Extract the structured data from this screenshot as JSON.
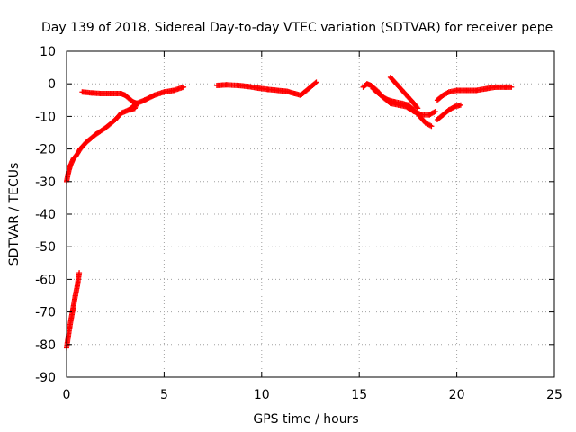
{
  "chart_data": {
    "type": "scatter",
    "title": "Day 139 of 2018, Sidereal Day-to-day VTEC variation (SDTVAR) for receiver pepe",
    "xlabel": "GPS time / hours",
    "ylabel": "SDTVAR / TECUs",
    "xlim": [
      0,
      25
    ],
    "ylim": [
      -90,
      10
    ],
    "xticks": [
      "0",
      "5",
      "10",
      "15",
      "20",
      "25"
    ],
    "yticks": [
      "10",
      "0",
      "-10",
      "-20",
      "-30",
      "-40",
      "-50",
      "-60",
      "-70",
      "-80",
      "-90"
    ],
    "grid": true,
    "marker": "plus",
    "color": "#ff0000",
    "series": [
      {
        "segments": [
          [
            [
              0.0,
              -81
            ],
            [
              0.15,
              -75
            ],
            [
              0.3,
              -70
            ],
            [
              0.45,
              -65
            ],
            [
              0.55,
              -62
            ],
            [
              0.65,
              -58
            ]
          ],
          [
            [
              0.0,
              -30
            ],
            [
              0.1,
              -27
            ],
            [
              0.2,
              -25
            ],
            [
              0.35,
              -23
            ],
            [
              0.5,
              -22
            ],
            [
              0.7,
              -20
            ],
            [
              1.0,
              -18
            ],
            [
              1.5,
              -15.5
            ],
            [
              2.0,
              -13.5
            ],
            [
              2.5,
              -11
            ],
            [
              2.8,
              -9
            ],
            [
              3.2,
              -8
            ],
            [
              3.6,
              -6
            ],
            [
              4.0,
              -5
            ],
            [
              4.5,
              -3.5
            ],
            [
              5.0,
              -2.5
            ],
            [
              5.5,
              -2
            ],
            [
              6.0,
              -1
            ]
          ],
          [
            [
              0.8,
              -2.5
            ],
            [
              1.3,
              -2.8
            ],
            [
              1.8,
              -3
            ],
            [
              2.3,
              -3
            ],
            [
              2.8,
              -3
            ],
            [
              3.0,
              -3.5
            ],
            [
              3.2,
              -4.5
            ],
            [
              3.4,
              -5.5
            ],
            [
              3.6,
              -6
            ],
            [
              3.5,
              -7.5
            ],
            [
              3.3,
              -8
            ]
          ],
          [
            [
              7.7,
              -0.5
            ],
            [
              8.2,
              -0.3
            ],
            [
              8.8,
              -0.5
            ],
            [
              9.3,
              -0.8
            ],
            [
              9.8,
              -1.3
            ],
            [
              10.3,
              -1.7
            ],
            [
              10.8,
              -2
            ],
            [
              11.3,
              -2.3
            ],
            [
              11.7,
              -3
            ],
            [
              12.0,
              -3.5
            ],
            [
              12.3,
              -2
            ],
            [
              12.6,
              -0.5
            ],
            [
              12.8,
              0.5
            ]
          ],
          [
            [
              15.2,
              -1
            ],
            [
              15.4,
              0
            ],
            [
              15.6,
              -0.5
            ],
            [
              15.9,
              -2
            ],
            [
              16.2,
              -4
            ],
            [
              16.5,
              -5
            ],
            [
              16.8,
              -5.5
            ],
            [
              17.2,
              -6
            ],
            [
              17.5,
              -6.5
            ],
            [
              17.8,
              -8
            ],
            [
              18.1,
              -10
            ],
            [
              18.4,
              -12
            ],
            [
              18.7,
              -13
            ]
          ],
          [
            [
              15.7,
              -1.5
            ],
            [
              16.0,
              -3
            ],
            [
              16.3,
              -4.5
            ],
            [
              16.6,
              -6
            ],
            [
              17.0,
              -6.5
            ],
            [
              17.4,
              -7
            ],
            [
              17.8,
              -8.5
            ],
            [
              18.2,
              -9.5
            ],
            [
              18.6,
              -9.5
            ],
            [
              18.9,
              -8.5
            ]
          ],
          [
            [
              16.6,
              2
            ],
            [
              16.9,
              0
            ],
            [
              17.2,
              -2
            ],
            [
              17.5,
              -4
            ],
            [
              17.8,
              -6
            ],
            [
              18.0,
              -7.5
            ]
          ],
          [
            [
              19.0,
              -11
            ],
            [
              19.3,
              -9.5
            ],
            [
              19.6,
              -8
            ],
            [
              19.9,
              -7
            ],
            [
              20.2,
              -6.5
            ]
          ],
          [
            [
              19.0,
              -5
            ],
            [
              19.3,
              -3.5
            ],
            [
              19.6,
              -2.5
            ],
            [
              20.0,
              -2
            ],
            [
              20.5,
              -2
            ],
            [
              21.0,
              -2
            ],
            [
              21.5,
              -1.5
            ],
            [
              22.0,
              -1
            ],
            [
              22.5,
              -1
            ],
            [
              22.8,
              -1
            ]
          ]
        ]
      }
    ]
  }
}
